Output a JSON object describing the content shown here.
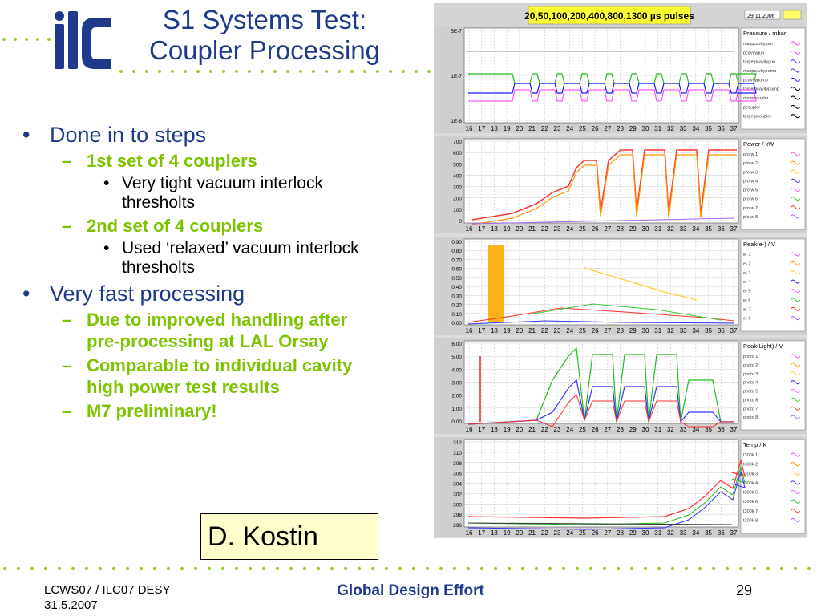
{
  "slide": {
    "title_line1": "S1 Systems Test:",
    "title_line2": "Coupler Processing"
  },
  "bullets": [
    {
      "text": "Done in to steps",
      "sub": [
        {
          "text": "1st set of 4 couplers",
          "sub": [
            "Very tight vacuum interlock thresholts"
          ]
        },
        {
          "text": "2nd set of 4 couplers",
          "sub": [
            "Used ‘relaxed’ vacuum interlock thresholts"
          ]
        }
      ]
    },
    {
      "text": "Very fast processing",
      "sub": [
        {
          "text": "Due to improved handling after pre-processing at LAL Orsay",
          "sub": []
        },
        {
          "text": "Comparable to individual cavity high power test results",
          "sub": []
        },
        {
          "text": "M7 preliminary!",
          "sub": []
        }
      ]
    }
  ],
  "markers": {
    "level1": "•",
    "level2": "–",
    "level3": "•"
  },
  "author_box": "D. Kostin",
  "footer": {
    "left_line1": "LCWS07 / ILC07 DESY",
    "left_line2": "31.5.2007",
    "center": "Global Design Effort",
    "page_number": "29"
  },
  "colors": {
    "title": "#1f3a8a",
    "level2": "#7cc300",
    "dots": "#9acd32",
    "logo": "#1f3a8a",
    "author_box_bg": "#ffffcc"
  },
  "plot": {
    "header_label": "20,50,100,200,400,800,1300 µs pulses",
    "date": "29.11.2006",
    "x_ticks": [
      "16",
      "17",
      "18",
      "19",
      "20",
      "21",
      "22",
      "23",
      "24",
      "25",
      "26",
      "27",
      "28",
      "29",
      "30",
      "31",
      "32",
      "33",
      "34",
      "35",
      "36",
      "37"
    ],
    "panels": [
      {
        "title": "Pressure / mbar",
        "y_ticks": [
          "5E-7",
          "1E-7",
          "1E-8"
        ],
        "legend": [
          "maxpcavitygun",
          "pcavitygun",
          "targetpcavitygun",
          "maxpcavitypump",
          "pcavitypump",
          "targetpcavitypump",
          "maxpcoupler",
          "pcoupler",
          "targetpcoupler"
        ]
      },
      {
        "title": "Power / kW",
        "y_ticks": [
          "700",
          "600",
          "500",
          "400",
          "300",
          "200",
          "100",
          "0"
        ],
        "legend": [
          "pforw 1",
          "pforw 2",
          "pforw 3",
          "pforw 4",
          "pforw 5",
          "pforw 6",
          "pforw 7",
          "pforw 8"
        ]
      },
      {
        "title": "Peak(e-) / V",
        "y_ticks": [
          "0.90",
          "0.80",
          "0.70",
          "0.60",
          "0.50",
          "0.40",
          "0.30",
          "0.20",
          "0.10",
          "0.00"
        ],
        "legend": [
          "e- 1",
          "e- 2",
          "e- 3",
          "e- 4",
          "e- 5",
          "e- 6",
          "e- 7",
          "e- 8"
        ]
      },
      {
        "title": "Peak(Light) / V",
        "y_ticks": [
          "6.00",
          "5.00",
          "4.00",
          "3.00",
          "2.00",
          "1.00",
          "0.00"
        ],
        "legend": [
          "photo 1",
          "photo 2",
          "photo 3",
          "photo 4",
          "photo 5",
          "photo 6",
          "photo 7",
          "photo 8"
        ]
      },
      {
        "title": "Temp / K",
        "y_ticks": [
          "312",
          "310",
          "308",
          "306",
          "304",
          "302",
          "300",
          "298",
          "296"
        ],
        "legend": [
          "t300k 1",
          "t300k 2",
          "t300k 3",
          "t300k 4",
          "t300k 5",
          "t300k 6",
          "t300k 7",
          "t300k 8"
        ]
      }
    ]
  }
}
